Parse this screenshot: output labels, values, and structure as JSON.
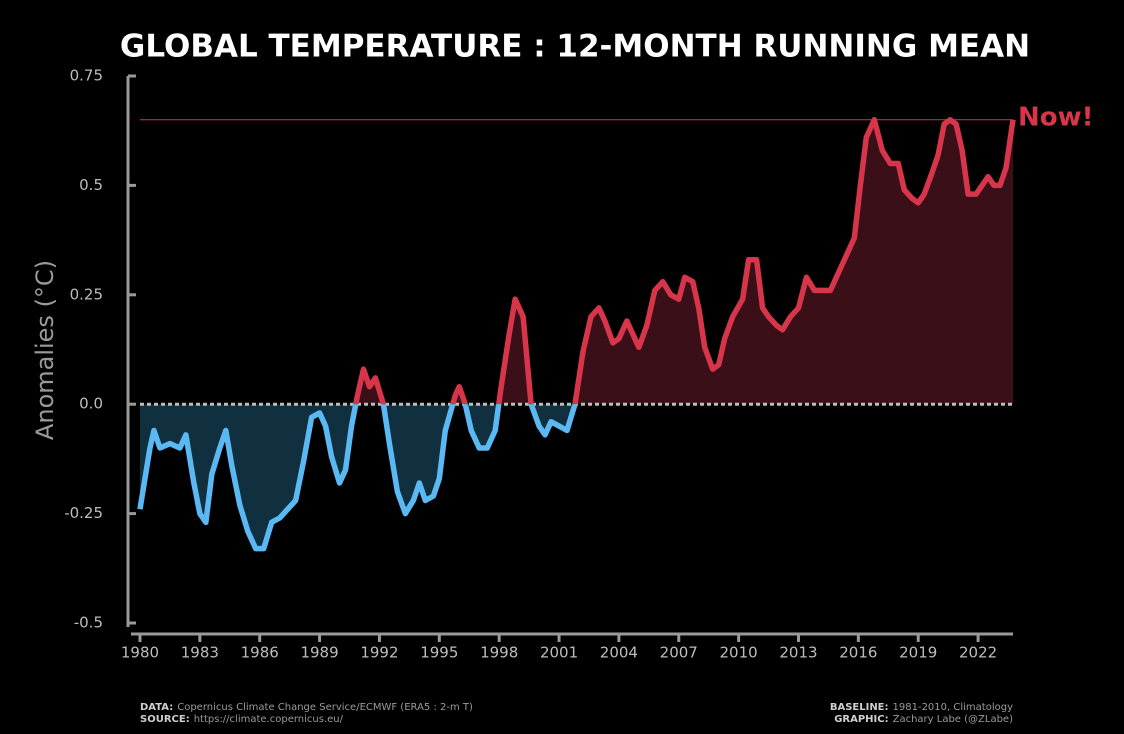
{
  "chart_data": {
    "type": "line",
    "title": "GLOBAL TEMPERATURE : 12-MONTH RUNNING MEAN",
    "y_label": "Anomalies (°C)",
    "annotation": {
      "text": "Now!",
      "value": 0.65
    },
    "above_color": "#d7354a",
    "below_color": "#5ab8f2",
    "above_fill": "#3b0f18",
    "below_fill": "#10303f",
    "xlim": [
      1979.65,
      2023.75
    ],
    "xticks": [
      1980,
      1983,
      1986,
      1989,
      1992,
      1995,
      1998,
      2001,
      2004,
      2007,
      2010,
      2013,
      2016,
      2019,
      2022
    ],
    "ylim": [
      -0.5,
      0.75
    ],
    "yticks": [
      -0.5,
      -0.25,
      {
        "value": 0,
        "label": "0.0"
      },
      0.25,
      0.5,
      0.75
    ],
    "x": [
      1980.0,
      1980.5,
      1980.7,
      1981.0,
      1981.5,
      1982.0,
      1982.3,
      1982.7,
      1983.0,
      1983.3,
      1983.6,
      1984.0,
      1984.3,
      1984.6,
      1985.0,
      1985.4,
      1985.8,
      1986.2,
      1986.6,
      1987.0,
      1987.4,
      1987.8,
      1988.2,
      1988.6,
      1989.0,
      1989.3,
      1989.6,
      1990.0,
      1990.3,
      1990.6,
      1990.9,
      1991.2,
      1991.5,
      1991.8,
      1992.2,
      1992.5,
      1992.9,
      1993.3,
      1993.7,
      1994.0,
      1994.3,
      1994.7,
      1995.0,
      1995.3,
      1995.8,
      1996.0,
      1996.3,
      1996.6,
      1997.0,
      1997.4,
      1997.8,
      1998.1,
      1998.5,
      1998.8,
      1999.2,
      1999.6,
      2000.0,
      2000.3,
      2000.6,
      2001.0,
      2001.4,
      2001.8,
      2002.2,
      2002.6,
      2003.0,
      2003.3,
      2003.7,
      2004.0,
      2004.4,
      2004.7,
      2005.0,
      2005.4,
      2005.8,
      2006.2,
      2006.6,
      2007.0,
      2007.3,
      2007.7,
      2008.0,
      2008.3,
      2008.7,
      2009.0,
      2009.3,
      2009.7,
      2010.2,
      2010.5,
      2010.9,
      2011.2,
      2011.5,
      2011.9,
      2012.2,
      2012.6,
      2013.0,
      2013.4,
      2013.8,
      2014.2,
      2014.6,
      2015.0,
      2015.4,
      2015.8,
      2016.1,
      2016.4,
      2016.8,
      2017.2,
      2017.6,
      2018.0,
      2018.3,
      2018.7,
      2019.0,
      2019.3,
      2019.7,
      2020.0,
      2020.3,
      2020.6,
      2020.9,
      2021.2,
      2021.5,
      2021.9,
      2022.2,
      2022.5,
      2022.8,
      2023.1,
      2023.4,
      2023.75
    ],
    "values": [
      -0.24,
      -0.1,
      -0.06,
      -0.1,
      -0.09,
      -0.1,
      -0.07,
      -0.18,
      -0.25,
      -0.27,
      -0.16,
      -0.1,
      -0.06,
      -0.14,
      -0.23,
      -0.29,
      -0.33,
      -0.33,
      -0.27,
      -0.26,
      -0.24,
      -0.22,
      -0.13,
      -0.03,
      -0.02,
      -0.05,
      -0.12,
      -0.18,
      -0.15,
      -0.05,
      0.02,
      0.08,
      0.04,
      0.06,
      0.0,
      -0.09,
      -0.2,
      -0.25,
      -0.22,
      -0.18,
      -0.22,
      -0.21,
      -0.17,
      -0.06,
      0.02,
      0.04,
      0.0,
      -0.06,
      -0.1,
      -0.1,
      -0.06,
      0.04,
      0.16,
      0.24,
      0.2,
      0.0,
      -0.05,
      -0.07,
      -0.04,
      -0.05,
      -0.06,
      0.0,
      0.12,
      0.2,
      0.22,
      0.19,
      0.14,
      0.15,
      0.19,
      0.16,
      0.13,
      0.18,
      0.26,
      0.28,
      0.25,
      0.24,
      0.29,
      0.28,
      0.22,
      0.13,
      0.08,
      0.09,
      0.15,
      0.2,
      0.24,
      0.33,
      0.33,
      0.22,
      0.2,
      0.18,
      0.17,
      0.2,
      0.22,
      0.29,
      0.26,
      0.26,
      0.26,
      0.3,
      0.34,
      0.38,
      0.5,
      0.61,
      0.65,
      0.58,
      0.55,
      0.55,
      0.49,
      0.47,
      0.46,
      0.48,
      0.53,
      0.57,
      0.64,
      0.65,
      0.64,
      0.58,
      0.48,
      0.48,
      0.5,
      0.52,
      0.5,
      0.5,
      0.54,
      0.65
    ],
    "notes": [
      {
        "label": "DATA:",
        "text": "Copernicus Climate Change Service/ECMWF (ERA5 : 2-m T)"
      },
      {
        "label": "SOURCE:",
        "text": "https://climate.copernicus.eu/"
      },
      {
        "label": "BASELINE:",
        "text": "1981-2010, Climatology"
      },
      {
        "label": "GRAPHIC:",
        "text": "Zachary Labe (@ZLabe)"
      }
    ]
  }
}
